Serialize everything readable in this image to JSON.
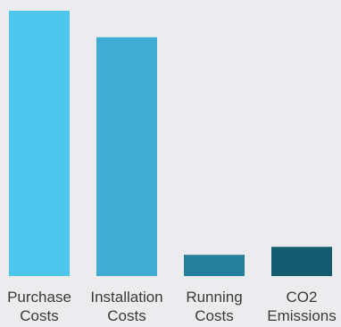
{
  "chart_data": {
    "type": "bar",
    "categories": [
      [
        "Purchase",
        "Costs"
      ],
      [
        "Installation",
        "Costs"
      ],
      [
        "Running",
        "Costs"
      ],
      [
        "CO2",
        "Emissions"
      ]
    ],
    "values": [
      100,
      90,
      8,
      11
    ],
    "colors": [
      "#4ec6ec",
      "#40acd4",
      "#237f9c",
      "#155b70"
    ],
    "ylim": [
      0,
      100
    ],
    "grid": false,
    "legend": "none"
  }
}
